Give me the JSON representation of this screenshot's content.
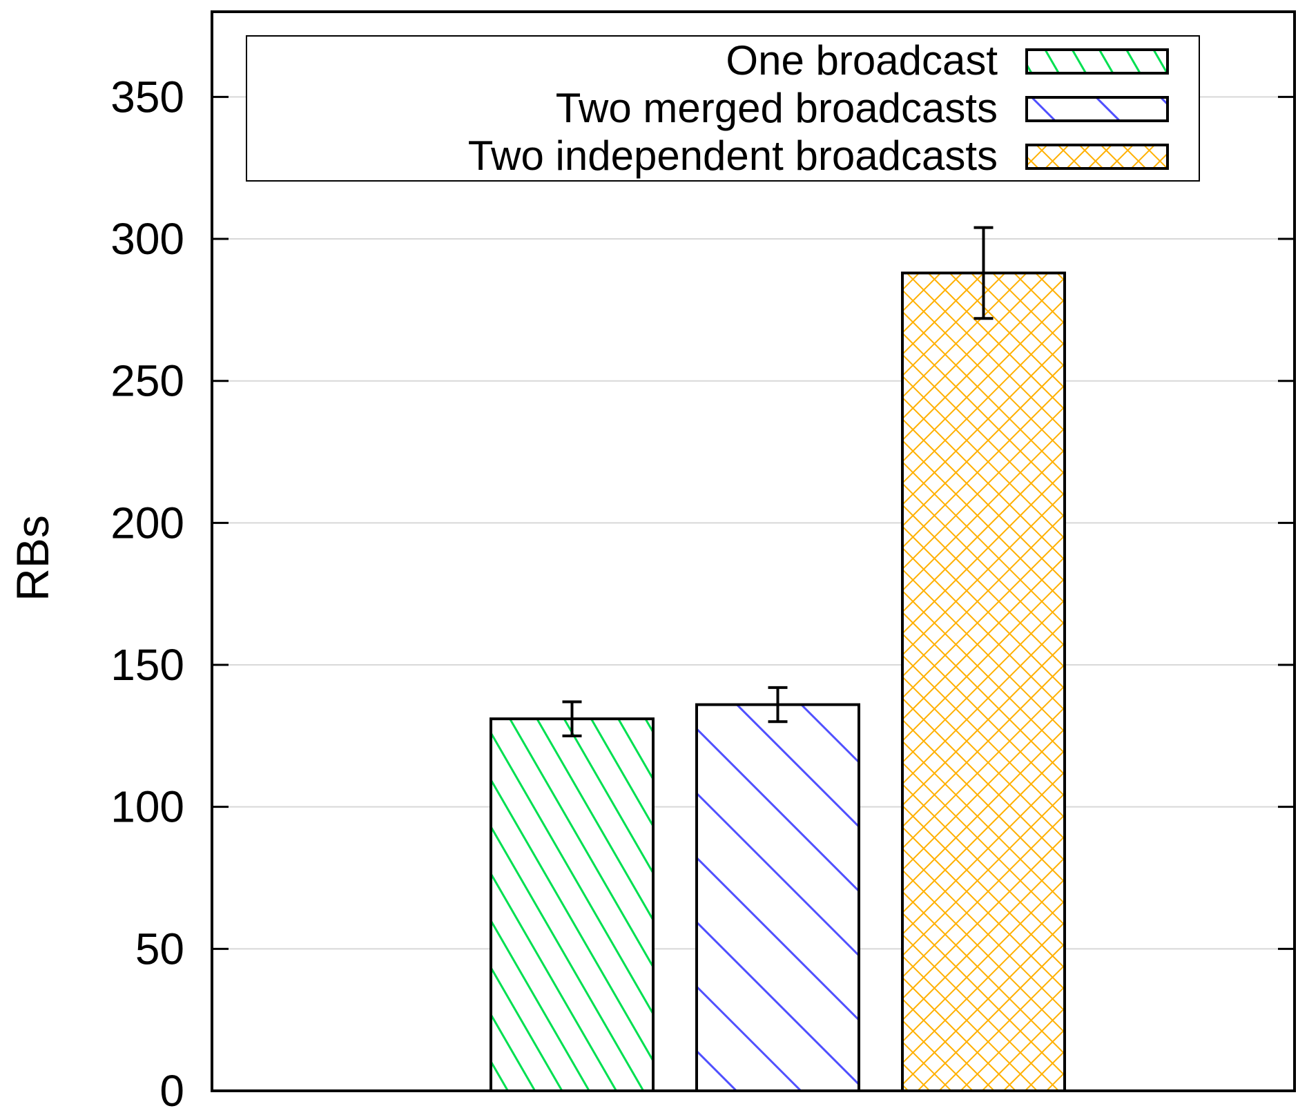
{
  "chart_data": {
    "type": "bar",
    "title": "",
    "xlabel": "",
    "ylabel": "RBs",
    "ylim": [
      0,
      380
    ],
    "yticks": [
      0,
      50,
      100,
      150,
      200,
      250,
      300,
      350
    ],
    "grid": true,
    "legend_position": "top-right",
    "series": [
      {
        "name": "One broadcast",
        "value": 131,
        "error": 6,
        "color": "#00e050",
        "pattern": "diagonal-left"
      },
      {
        "name": "Two merged broadcasts",
        "value": 136,
        "error": 6,
        "color": "#5050ff",
        "pattern": "diagonal-right"
      },
      {
        "name": "Two independent broadcasts",
        "value": 288,
        "error": 16,
        "color": "#ffb000",
        "pattern": "crosshatch"
      }
    ]
  }
}
